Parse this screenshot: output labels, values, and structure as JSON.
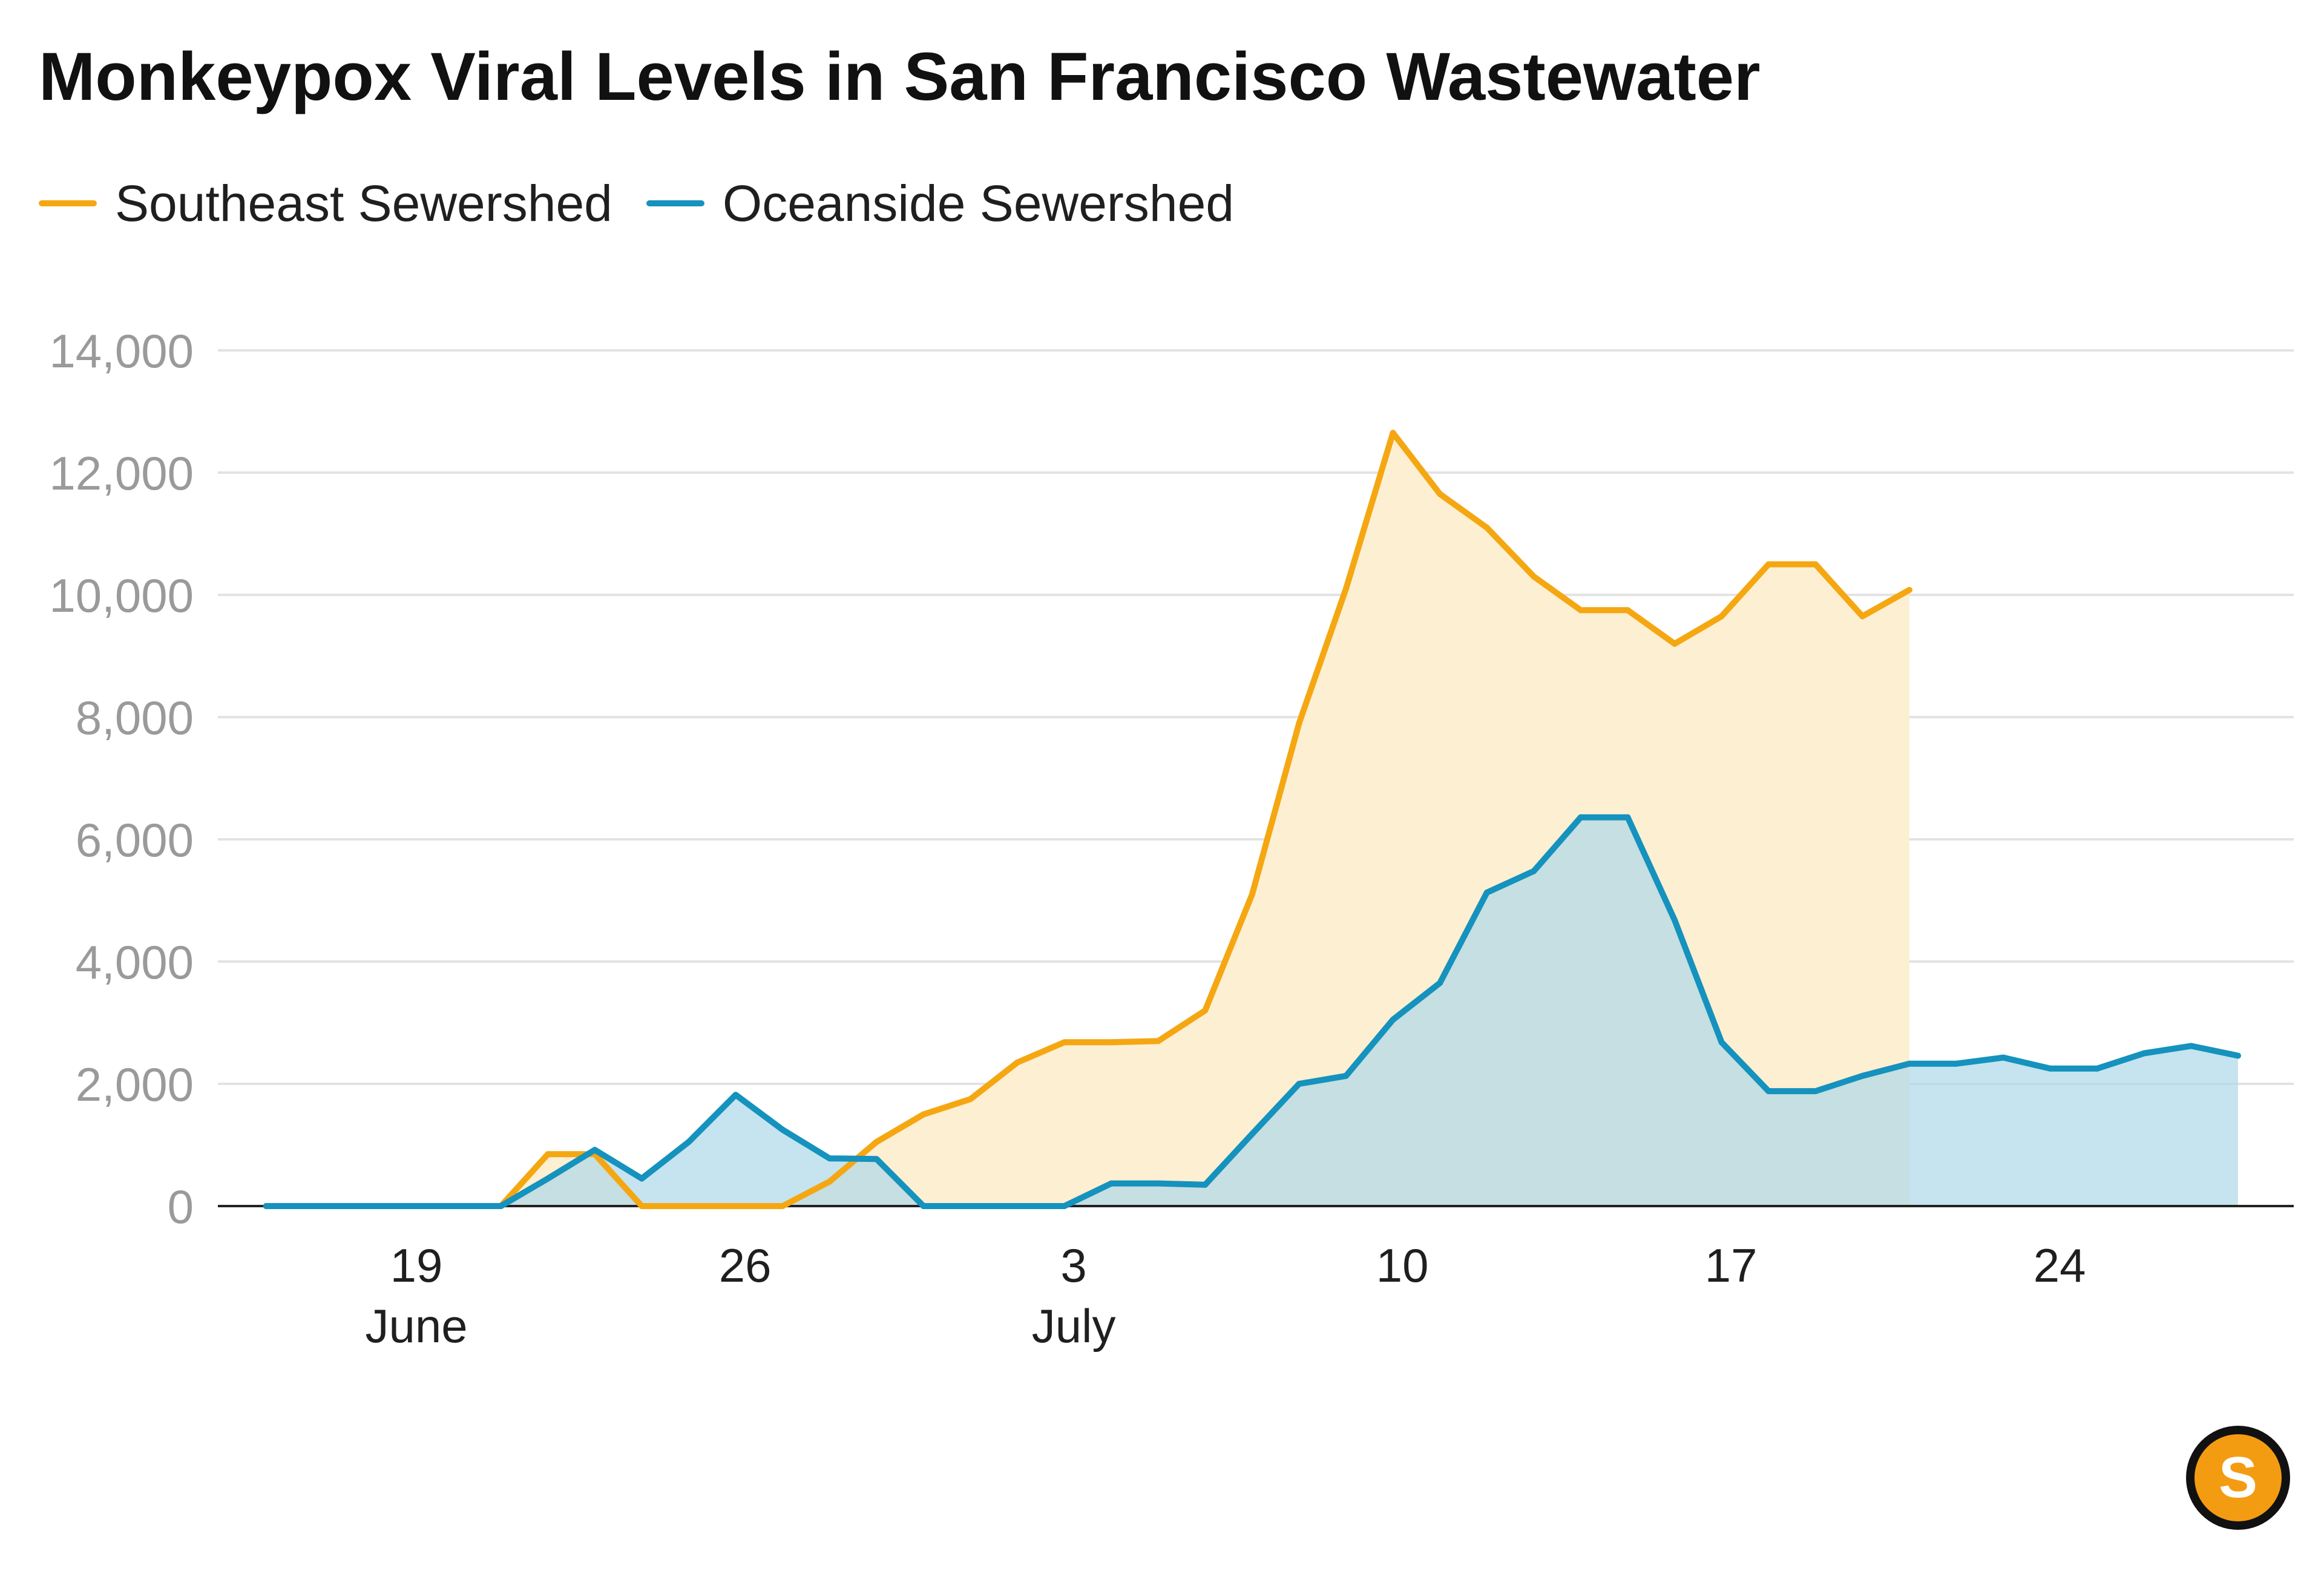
{
  "chart_data": {
    "type": "area",
    "title": "Monkeypox Viral Levels in San Francisco Wastewater",
    "xlabel": "",
    "ylabel": "",
    "ylim": [
      0,
      14000
    ],
    "y_ticks": [
      0,
      2000,
      4000,
      6000,
      8000,
      10000,
      12000,
      14000
    ],
    "y_tick_labels": [
      "0",
      "2,000",
      "4,000",
      "6,000",
      "8,000",
      "10,000",
      "12,000",
      "14,000"
    ],
    "x_unit": "day of year (2022)",
    "x_range": [
      165.9,
      209.6
    ],
    "x_ticks": [
      {
        "x": 170,
        "day_label": "19",
        "month_label": "June"
      },
      {
        "x": 177,
        "day_label": "26",
        "month_label": ""
      },
      {
        "x": 184,
        "day_label": "3",
        "month_label": "July"
      },
      {
        "x": 191,
        "day_label": "10",
        "month_label": ""
      },
      {
        "x": 198,
        "day_label": "17",
        "month_label": ""
      },
      {
        "x": 205,
        "day_label": "24",
        "month_label": ""
      }
    ],
    "grid": true,
    "legend_position": "top-left",
    "series": [
      {
        "name": "Southeast Sewershed",
        "color": "#F5A712",
        "fill_color": "#FDEFD2",
        "x": [
          166.8,
          167.8,
          168.8,
          169.8,
          170.8,
          171.8,
          172.8,
          173.8,
          174.8,
          175.8,
          176.8,
          177.8,
          178.8,
          179.8,
          180.8,
          181.8,
          182.8,
          183.8,
          184.8,
          185.8,
          186.8,
          187.8,
          188.8,
          189.8,
          190.8,
          191.8,
          192.8,
          193.8,
          194.8,
          195.8,
          196.8,
          197.8,
          198.8,
          199.8,
          200.8,
          201.8
        ],
        "values": [
          0,
          0,
          0,
          0,
          0,
          0,
          850,
          850,
          0,
          0,
          0,
          0,
          400,
          1050,
          1500,
          1750,
          2350,
          2680,
          2680,
          2700,
          3200,
          5100,
          7900,
          10100,
          12650,
          11650,
          11100,
          10300,
          9750,
          9750,
          9200,
          9650,
          10500,
          10500,
          9650,
          10080
        ]
      },
      {
        "name": "Oceanside Sewershed",
        "color": "#1592BE",
        "fill_color": "#ADD9E8",
        "x": [
          166.8,
          167.8,
          168.8,
          169.8,
          170.8,
          171.8,
          172.8,
          173.8,
          174.8,
          175.8,
          176.8,
          177.8,
          178.8,
          179.8,
          180.8,
          181.8,
          182.8,
          183.8,
          184.8,
          185.8,
          186.8,
          187.8,
          188.8,
          189.8,
          190.8,
          191.8,
          192.8,
          193.8,
          194.8,
          195.8,
          196.8,
          197.8,
          198.8,
          199.8,
          200.8,
          201.8,
          202.8,
          203.8,
          204.8,
          205.8,
          206.8,
          207.8,
          208.8
        ],
        "values": [
          0,
          0,
          0,
          0,
          0,
          0,
          450,
          920,
          450,
          1050,
          1820,
          1250,
          780,
          770,
          0,
          0,
          0,
          0,
          370,
          370,
          350,
          1180,
          2000,
          2130,
          3050,
          3650,
          5130,
          5480,
          6360,
          6360,
          4680,
          2680,
          1880,
          1880,
          2130,
          2330,
          2330,
          2430,
          2250,
          2250,
          2500,
          2620,
          2460
        ]
      }
    ]
  },
  "logo": {
    "letter": "S",
    "color": "#F39C12"
  }
}
